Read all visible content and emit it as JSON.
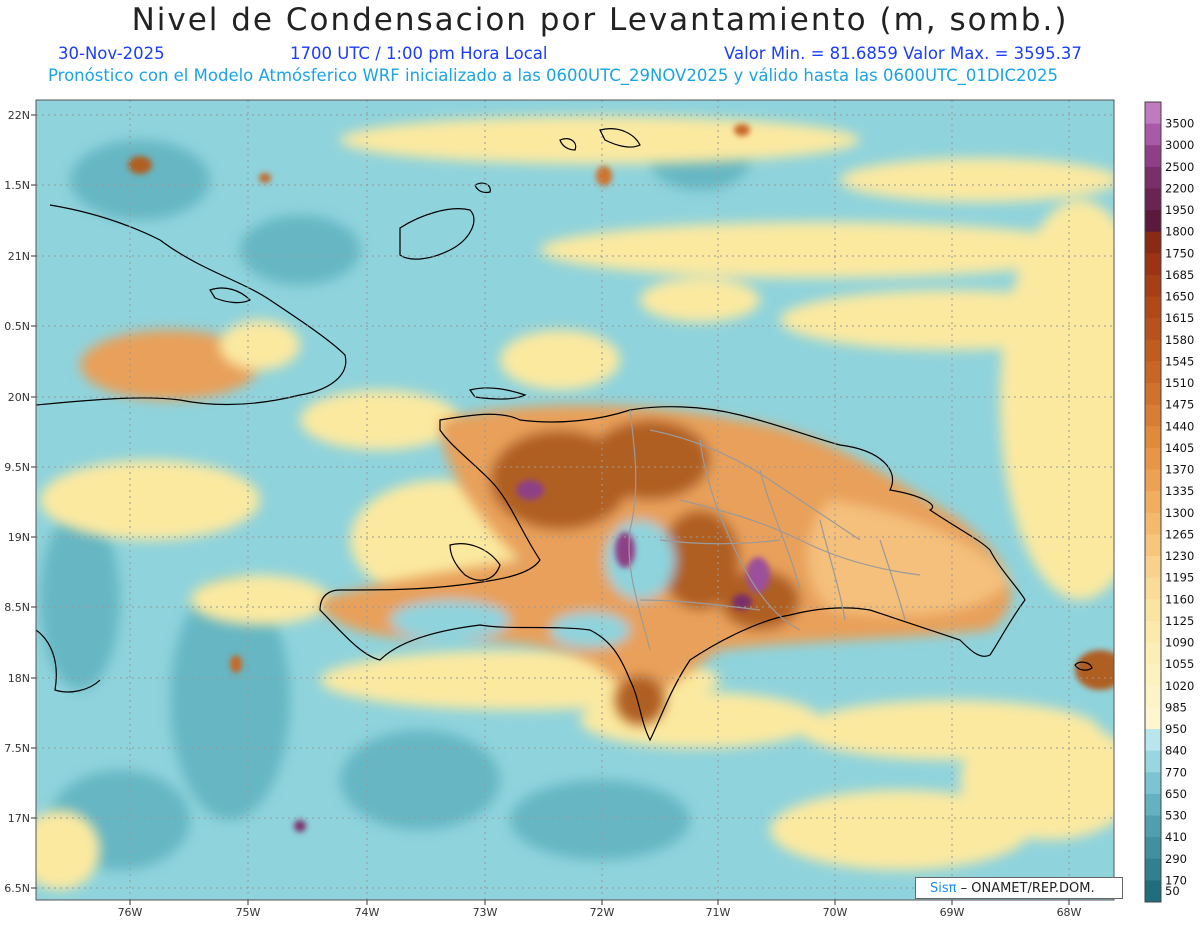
{
  "header": {
    "title": "Nivel de Condensacion por Levantamiento (m, somb.)",
    "date": "30-Nov-2025",
    "time": "1700 UTC / 1:00 pm Hora Local",
    "minmax": "Valor Min. = 81.6859  Valor Max. = 3595.37",
    "model": "Pronóstico con el Modelo Atmósferico WRF inicializado a las 0600UTC_29NOV2025 y válido hasta las  0600UTC_01DIC2025"
  },
  "map": {
    "lat_labels": [
      "22N",
      "1.5N",
      "21N",
      "0.5N",
      "20N",
      "9.5N",
      "19N",
      "8.5N",
      "18N",
      "7.5N",
      "17N",
      "6.5N"
    ],
    "lon_labels": [
      "76W",
      "75W",
      "74W",
      "73W",
      "72W",
      "71W",
      "70W",
      "69W",
      "68W"
    ],
    "colors": {
      "ocean_base": "#8fd3dc",
      "ocean_dark": "#4fa6b3",
      "yellow": "#fbe9a0",
      "orange": "#e8a05a",
      "brown": "#b05e22",
      "dark_brown": "#7a3a14",
      "purple": "#9c4f9a"
    }
  },
  "colorbar": {
    "labels": [
      "3500",
      "3000",
      "2500",
      "2200",
      "1950",
      "1800",
      "1750",
      "1685",
      "1650",
      "1615",
      "1580",
      "1545",
      "1510",
      "1475",
      "1440",
      "1405",
      "1370",
      "1335",
      "1300",
      "1265",
      "1230",
      "1195",
      "1160",
      "1125",
      "1090",
      "1055",
      "1020",
      "985",
      "950",
      "840",
      "770",
      "650",
      "530",
      "410",
      "290",
      "170",
      "50"
    ],
    "colors": [
      "#c07ac0",
      "#a85aa8",
      "#8e3f86",
      "#7a2e6a",
      "#6a2452",
      "#5a1a3c",
      "#8a2a14",
      "#9a3414",
      "#a63e16",
      "#b04818",
      "#b8521c",
      "#c05c20",
      "#c86626",
      "#d0722c",
      "#d87e34",
      "#e08a3c",
      "#e69646",
      "#eca252",
      "#f0ae5e",
      "#f4ba6c",
      "#f6c67c",
      "#f8d28c",
      "#f9dc98",
      "#fae4a2",
      "#fbeaac",
      "#fbeeb6",
      "#fcf2c0",
      "#fcf4c8",
      "#fdf6d0",
      "#b8e6ec",
      "#98d6e0",
      "#7cc4d0",
      "#64b2c0",
      "#509fae",
      "#40909e",
      "#30808e",
      "#206e7c"
    ]
  },
  "credit": {
    "sis": "Sisπ",
    "org": "– ONAMET/REP.DOM."
  }
}
